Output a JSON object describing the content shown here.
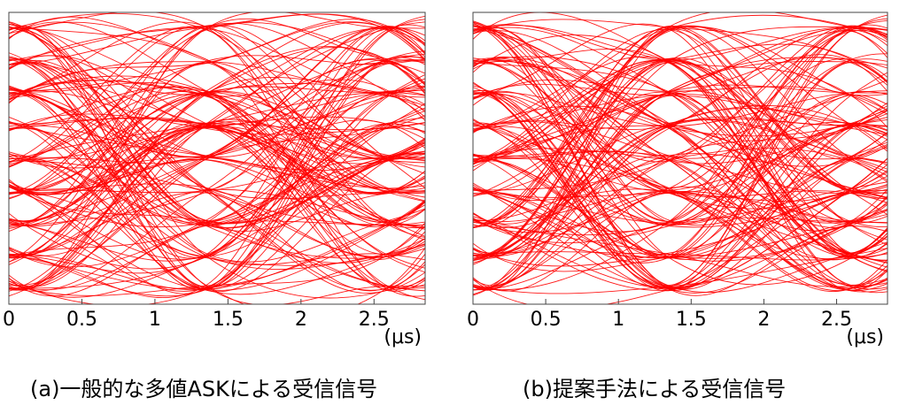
{
  "chart_data": [
    {
      "type": "line",
      "subtype": "eye-diagram",
      "caption": "(a)一般的な多値ASKによる受信信号",
      "x_unit": "(μs)",
      "xticks": [
        0,
        0.5,
        1,
        1.5,
        2,
        2.5
      ],
      "xlim": [
        0,
        2.85
      ],
      "ylim": [
        -4.5,
        4.5
      ],
      "levels": [
        -4,
        -3,
        -2,
        -1,
        0,
        1,
        2,
        3,
        4
      ],
      "symbol_period_us": 1.25,
      "first_sampling_instant_us": 0.1,
      "trace_color": "#ff0000",
      "grid": false
    },
    {
      "type": "line",
      "subtype": "eye-diagram",
      "caption": "(b)提案手法による受信信号",
      "x_unit": "(μs)",
      "xticks": [
        0,
        0.5,
        1,
        1.5,
        2,
        2.5
      ],
      "xlim": [
        0,
        2.85
      ],
      "ylim": [
        -4.5,
        4.5
      ],
      "levels": [
        -4,
        -3,
        -2,
        -1,
        0,
        1,
        2,
        3,
        4
      ],
      "symbol_period_us": 1.25,
      "first_sampling_instant_us": 0.1,
      "trace_color": "#ff0000",
      "grid": false
    }
  ]
}
